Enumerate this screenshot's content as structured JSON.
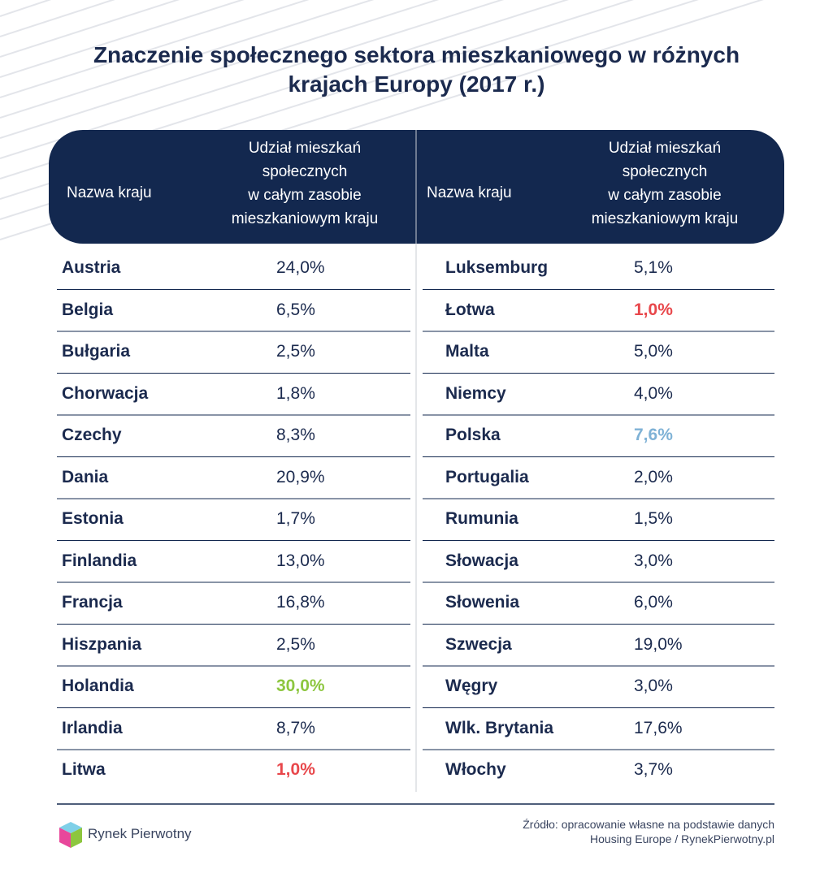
{
  "title_lines": [
    "Znaczenie społecznego sektora mieszkaniowego w różnych",
    "krajach Europy (2017 r.)"
  ],
  "tables": [
    {
      "header": {
        "country": "Nazwa kraju",
        "share_lines": [
          "Udział mieszkań",
          "społecznych",
          "w całym zasobie",
          "mieszkaniowym kraju"
        ]
      },
      "rows": [
        {
          "country": "Austria",
          "share": "24,0%"
        },
        {
          "country": "Belgia",
          "share": "6,5%"
        },
        {
          "country": "Bułgaria",
          "share": "2,5%"
        },
        {
          "country": "Chorwacja",
          "share": "1,8%"
        },
        {
          "country": "Czechy",
          "share": "8,3%"
        },
        {
          "country": "Dania",
          "share": "20,9%"
        },
        {
          "country": "Estonia",
          "share": "1,7%"
        },
        {
          "country": "Finlandia",
          "share": "13,0%"
        },
        {
          "country": "Francja",
          "share": "16,8%"
        },
        {
          "country": "Hiszpania",
          "share": "2,5%"
        },
        {
          "country": "Holandia",
          "share": "30,0%",
          "color": "#8dc63f"
        },
        {
          "country": "Irlandia",
          "share": "8,7%"
        },
        {
          "country": "Litwa",
          "share": "1,0%",
          "color": "#e8474b"
        }
      ]
    },
    {
      "header": {
        "country": "Nazwa kraju",
        "share_lines": [
          "Udział mieszkań",
          "społecznych",
          "w całym zasobie",
          "mieszkaniowym kraju"
        ]
      },
      "rows": [
        {
          "country": "Luksemburg",
          "share": "5,1%"
        },
        {
          "country": "Łotwa",
          "share": "1,0%",
          "color": "#e8474b"
        },
        {
          "country": "Malta",
          "share": "5,0%"
        },
        {
          "country": "Niemcy",
          "share": "4,0%"
        },
        {
          "country": "Polska",
          "share": "7,6%",
          "color": "#7fb2d6"
        },
        {
          "country": "Portugalia",
          "share": "2,0%"
        },
        {
          "country": "Rumunia",
          "share": "1,5%"
        },
        {
          "country": "Słowacja",
          "share": "3,0%"
        },
        {
          "country": "Słowenia",
          "share": "6,0%"
        },
        {
          "country": "Szwecja",
          "share": "19,0%"
        },
        {
          "country": "Węgry",
          "share": "3,0%"
        },
        {
          "country": "Wlk. Brytania",
          "share": "17,6%"
        },
        {
          "country": "Włochy",
          "share": "3,7%"
        }
      ]
    }
  ],
  "footer": {
    "brand": "Rynek Pierwotny",
    "source_lines": [
      "Źródło: opracowanie własne na podstawie danych",
      "Housing Europe / RynekPierwotny.pl"
    ]
  }
}
